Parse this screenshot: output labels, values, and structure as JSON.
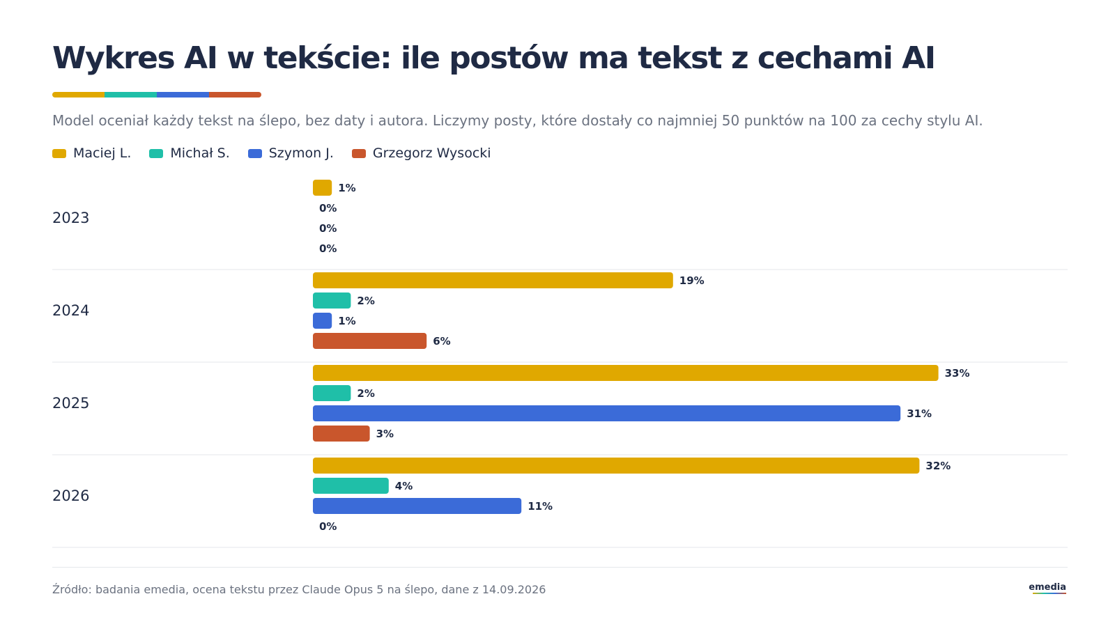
{
  "header": {
    "title": "Wykres AI w tekście: ile postów ma tekst z cechami AI",
    "subtitle": "Model oceniał każdy tekst na ślepo, bez daty i autora. Liczymy posty, które dostały co najmniej 50 punktów na 100 za cechy stylu AI.",
    "accent_colors": [
      "#E0A800",
      "#1FBFA8",
      "#3B6BD8",
      "#C9562C"
    ]
  },
  "legend": [
    {
      "label": "Maciej L.",
      "color": "#E0A800"
    },
    {
      "label": "Michał S.",
      "color": "#1FBFA8"
    },
    {
      "label": "Szymon J.",
      "color": "#3B6BD8"
    },
    {
      "label": "Grzegorz Wysocki",
      "color": "#C9562C"
    }
  ],
  "chart_data": {
    "type": "bar",
    "orientation": "horizontal",
    "categories": [
      "2023",
      "2024",
      "2025",
      "2026"
    ],
    "series": [
      {
        "name": "Maciej L.",
        "color": "#E0A800",
        "values": [
          1,
          19,
          33,
          32
        ],
        "labels": [
          "1%",
          "19%",
          "33%",
          "32%"
        ]
      },
      {
        "name": "Michał S.",
        "color": "#1FBFA8",
        "values": [
          0,
          2,
          2,
          4
        ],
        "labels": [
          "0%",
          "2%",
          "2%",
          "4%"
        ]
      },
      {
        "name": "Szymon J.",
        "color": "#3B6BD8",
        "values": [
          0,
          1,
          31,
          11
        ],
        "labels": [
          "0%",
          "1%",
          "31%",
          "11%"
        ]
      },
      {
        "name": "Grzegorz Wysocki",
        "color": "#C9562C",
        "values": [
          0,
          6,
          3,
          0
        ],
        "labels": [
          "0%",
          "6%",
          "3%",
          "0%"
        ]
      }
    ],
    "unit": "%",
    "grid": false,
    "legend_position": "top-left"
  },
  "footer": {
    "source": "Źródło: badania emedia, ocena tekstu przez Claude Opus 5 na ślepo, dane z 14.09.2026",
    "logo": "emedia"
  }
}
